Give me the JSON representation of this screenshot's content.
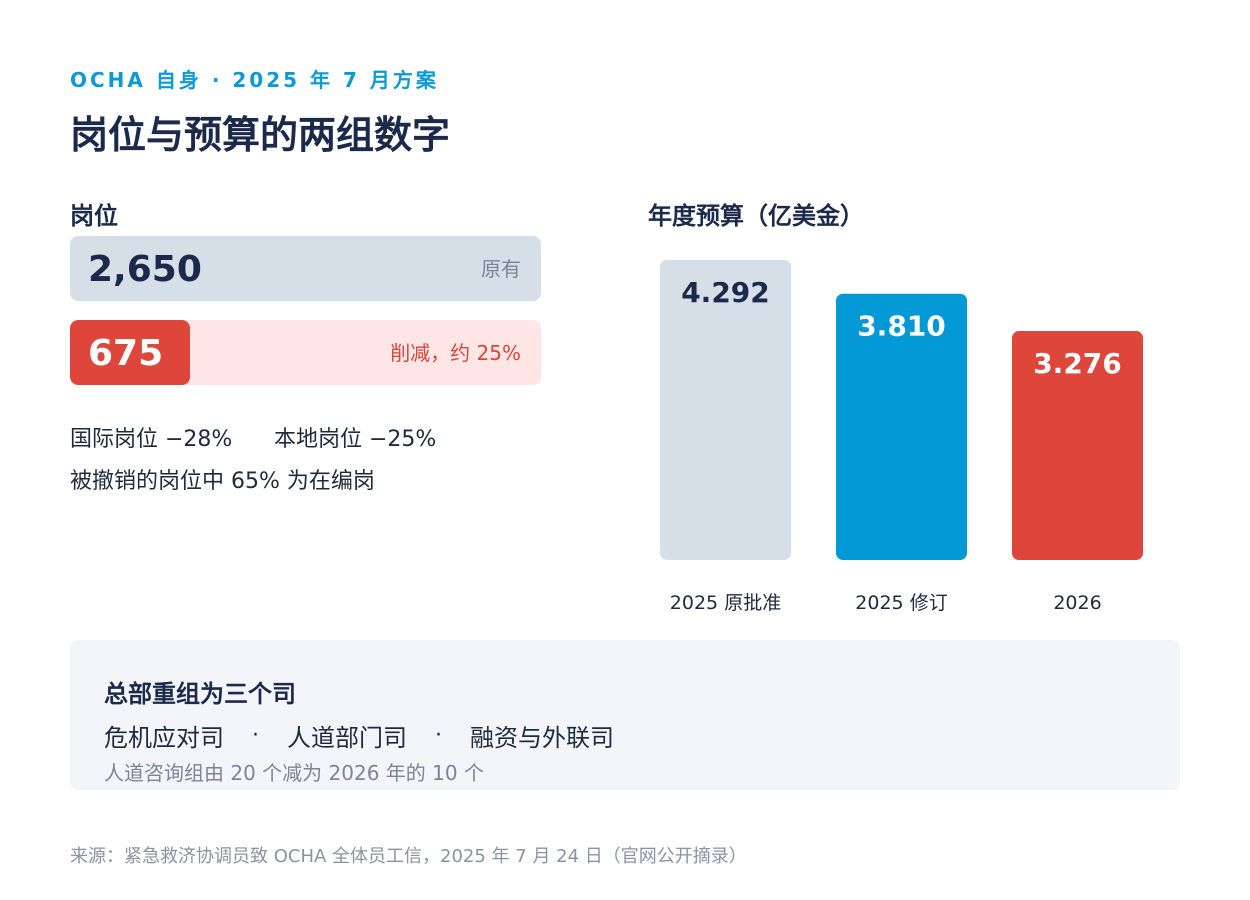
{
  "header": {
    "eyebrow": "OCHA 自身 · 2025 年 7 月方案",
    "title": "岗位与预算的两组数字"
  },
  "posts": {
    "label": "岗位",
    "original": {
      "value": "2,650",
      "note": "原有",
      "count": 2650
    },
    "cut": {
      "value": "675",
      "note": "削减，约 25%",
      "count": 675
    },
    "international": "国际岗位 −28%",
    "local": "本地岗位 −25%",
    "abolished_note": "被撤销的岗位中 65% 为在编岗"
  },
  "budget": {
    "label": "年度预算（亿美金）"
  },
  "chart_data": {
    "type": "bar",
    "title": "年度预算（亿美金）",
    "categories": [
      "2025 原批准",
      "2025 修订",
      "2026"
    ],
    "values": [
      4.292,
      3.81,
      3.276
    ],
    "value_labels": [
      "4.292",
      "3.810",
      "3.276"
    ],
    "colors": [
      "#d6dee8",
      "#0399d7",
      "#de463b"
    ],
    "label_colors": [
      "#1b2a4a",
      "#ffffff",
      "#ffffff"
    ],
    "ylim": [
      0,
      4.292
    ],
    "grid": false
  },
  "reorg": {
    "title": "总部重组为三个司",
    "departments": [
      "危机应对司",
      "人道部门司",
      "融资与外联司"
    ],
    "separator": "·",
    "note": "人道咨询组由 20 个减为 2026 年的 10 个"
  },
  "footer": {
    "source": "来源：紧急救济协调员致 OCHA 全体员工信，2025 年 7 月 24 日（官网公开摘录）"
  }
}
